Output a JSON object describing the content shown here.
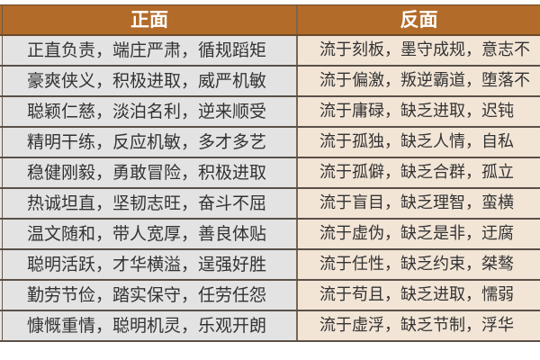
{
  "colors": {
    "header_bg": "#b36b2a",
    "positive_bg": "#e3e3e3",
    "negative_bg": "#f2e5d6"
  },
  "header": {
    "positive": "正面",
    "negative": "反面"
  },
  "rows": [
    {
      "positive": "正直负责，端庄严肃，循规蹈矩",
      "negative": "流于刻板，墨守成规，意志不"
    },
    {
      "positive": "豪爽侠义，积极进取，威严机敏",
      "negative": "流于偏激，叛逆霸道，堕落不"
    },
    {
      "positive": "聪颖仁慈，淡泊名利，逆来顺受",
      "negative": "流于庸碌，缺乏进取，迟钝"
    },
    {
      "positive": "精明干练，反应机敏，多才多艺",
      "negative": "流于孤独，缺乏人情，自私"
    },
    {
      "positive": "稳健刚毅，勇敢冒险，积极进取",
      "negative": "流于孤僻，缺乏合群，孤立"
    },
    {
      "positive": "热诚坦直，坚韧志旺，奋斗不屈",
      "negative": "流于盲目，缺乏理智，蛮横"
    },
    {
      "positive": "温文随和，带人宽厚，善良体贴",
      "negative": "流于虚伪，缺乏是非，迂腐"
    },
    {
      "positive": "聪明活跃，才华横溢，逞强好胜",
      "negative": "流于任性，缺乏约束，桀骜"
    },
    {
      "positive": "勤劳节俭，踏实保守，任劳任怨",
      "negative": "流于苟且，缺乏进取，懦弱"
    },
    {
      "positive": "慷慨重情，聪明机灵，乐观开朗",
      "negative": "流于虚浮，缺乏节制，浮华"
    }
  ]
}
